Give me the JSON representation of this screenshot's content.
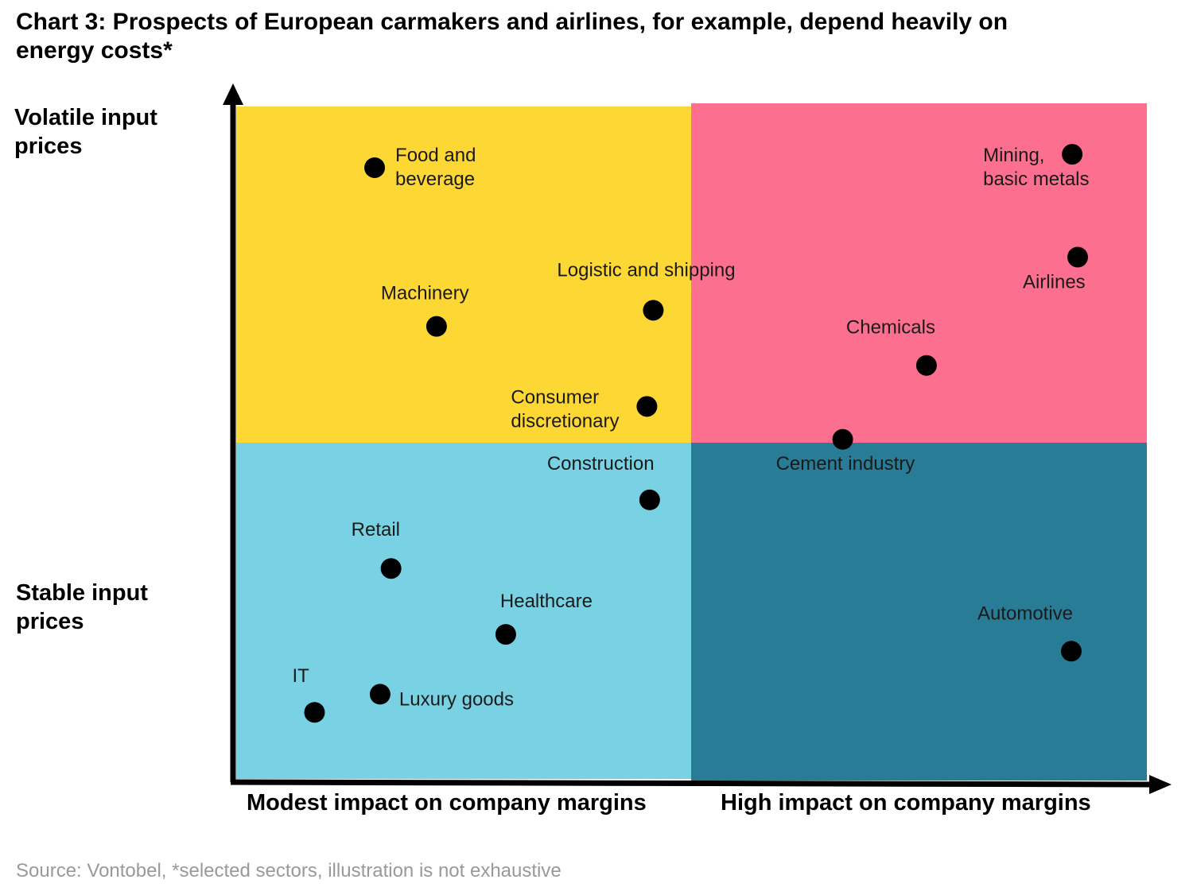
{
  "title": "Chart 3: Prospects of European carmakers and airlines, for example, depend heavily on energy costs*",
  "y_labels": {
    "top": "Volatile input prices",
    "bottom": "Stable input prices"
  },
  "x_labels": {
    "left": "Modest impact on company margins",
    "right": "High impact on company margins"
  },
  "source": "Source: Vontobel, *selected sectors, illustration is not exhaustive",
  "colors": {
    "top_left": "#fdd835",
    "top_right": "#fd6f8e",
    "bottom_left": "#78d2e4",
    "bottom_right": "#297c96",
    "point": "#000000",
    "axis": "#000000"
  },
  "chart_data": {
    "type": "scatter",
    "title": "Chart 3: Prospects of European carmakers and airlines, for example, depend heavily on energy costs*",
    "xlabel": "",
    "ylabel": "",
    "x_categories": [
      "Modest impact on company margins",
      "High impact on company margins"
    ],
    "y_categories": [
      "Stable input prices",
      "Volatile input prices"
    ],
    "xlim": [
      0,
      1
    ],
    "ylim": [
      0,
      1
    ],
    "grid": false,
    "points": [
      {
        "label": "Food and beverage",
        "x": 0.152,
        "y": 0.909
      },
      {
        "label": "Mining, basic metals",
        "x": 0.918,
        "y": 0.929
      },
      {
        "label": "Airlines",
        "x": 0.924,
        "y": 0.776
      },
      {
        "label": "Logistic and shipping",
        "x": 0.458,
        "y": 0.697
      },
      {
        "label": "Machinery",
        "x": 0.22,
        "y": 0.673
      },
      {
        "label": "Chemicals",
        "x": 0.758,
        "y": 0.615
      },
      {
        "label": "Consumer discretionary",
        "x": 0.451,
        "y": 0.554
      },
      {
        "label": "Cement industry",
        "x": 0.666,
        "y": 0.505
      },
      {
        "label": "Construction",
        "x": 0.454,
        "y": 0.415
      },
      {
        "label": "Retail",
        "x": 0.17,
        "y": 0.313
      },
      {
        "label": "Healthcare",
        "x": 0.296,
        "y": 0.215
      },
      {
        "label": "Automotive",
        "x": 0.917,
        "y": 0.19
      },
      {
        "label": "Luxury goods",
        "x": 0.158,
        "y": 0.126
      },
      {
        "label": "IT",
        "x": 0.086,
        "y": 0.099
      }
    ]
  }
}
